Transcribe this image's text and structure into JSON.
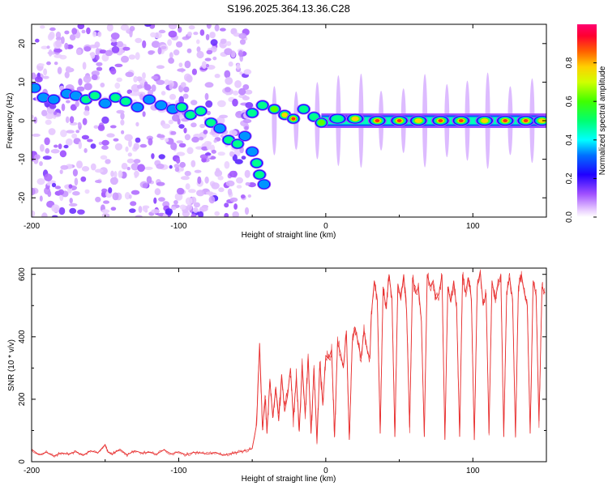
{
  "title": "S196.2025.364.13.36.C28",
  "chart_data": [
    {
      "type": "heatmap",
      "name": "spectrogram",
      "xlabel": "Height of straight line (km)",
      "ylabel": "Frequency (Hz)",
      "xlim": [
        -200,
        150
      ],
      "ylim": [
        -25,
        25
      ],
      "xticks": [
        -200,
        -100,
        0,
        100
      ],
      "yticks": [
        -20,
        -10,
        0,
        10,
        20
      ],
      "colorbar": {
        "label": "Normalized spectral amplitude",
        "range": [
          0,
          1
        ],
        "ticks": [
          0.0,
          0.2,
          0.4,
          0.6,
          0.8
        ]
      },
      "ridge": [
        {
          "x": -198,
          "f": 8.5,
          "a": 0.45
        },
        {
          "x": -192,
          "f": 6.0,
          "a": 0.35
        },
        {
          "x": -185,
          "f": 5.5,
          "a": 0.4
        },
        {
          "x": -176,
          "f": 7.0,
          "a": 0.35
        },
        {
          "x": -170,
          "f": 6.5,
          "a": 0.45
        },
        {
          "x": -163,
          "f": 5.5,
          "a": 0.55
        },
        {
          "x": -157,
          "f": 6.5,
          "a": 0.6
        },
        {
          "x": -150,
          "f": 4.5,
          "a": 0.4
        },
        {
          "x": -143,
          "f": 6.0,
          "a": 0.55
        },
        {
          "x": -136,
          "f": 5.0,
          "a": 0.5
        },
        {
          "x": -128,
          "f": 3.5,
          "a": 0.4
        },
        {
          "x": -120,
          "f": 5.5,
          "a": 0.35
        },
        {
          "x": -112,
          "f": 4.0,
          "a": 0.45
        },
        {
          "x": -104,
          "f": 3.0,
          "a": 0.4
        },
        {
          "x": -98,
          "f": 3.5,
          "a": 0.5
        },
        {
          "x": -92,
          "f": 1.5,
          "a": 0.5
        },
        {
          "x": -85,
          "f": 2.5,
          "a": 0.55
        },
        {
          "x": -78,
          "f": -0.5,
          "a": 0.5
        },
        {
          "x": -72,
          "f": -2.0,
          "a": 0.45
        },
        {
          "x": -66,
          "f": -5.0,
          "a": 0.6
        },
        {
          "x": -60,
          "f": -6.0,
          "a": 0.5
        },
        {
          "x": -55,
          "f": -4.0,
          "a": 0.4
        },
        {
          "x": -50,
          "f": 2.0,
          "a": 0.5
        },
        {
          "x": -43,
          "f": 4.0,
          "a": 0.55
        },
        {
          "x": -35,
          "f": 3.0,
          "a": 0.65
        },
        {
          "x": -28,
          "f": 1.5,
          "a": 0.8
        },
        {
          "x": -22,
          "f": 0.5,
          "a": 0.9
        },
        {
          "x": -15,
          "f": 3.0,
          "a": 0.6
        },
        {
          "x": -8,
          "f": 1.0,
          "a": 0.5
        },
        {
          "x": -3,
          "f": -0.5,
          "a": 0.7
        },
        {
          "x": 8,
          "f": 0.5,
          "a": 0.55
        },
        {
          "x": 20,
          "f": 0.5,
          "a": 0.8
        },
        {
          "x": 35,
          "f": 0.0,
          "a": 0.9
        },
        {
          "x": 50,
          "f": 0.0,
          "a": 0.95
        },
        {
          "x": 63,
          "f": 0.0,
          "a": 0.85
        },
        {
          "x": 78,
          "f": 0.0,
          "a": 0.95
        },
        {
          "x": 92,
          "f": 0.0,
          "a": 0.95
        },
        {
          "x": 108,
          "f": 0.0,
          "a": 0.85
        },
        {
          "x": 122,
          "f": 0.0,
          "a": 0.95
        },
        {
          "x": 136,
          "f": 0.0,
          "a": 0.9
        },
        {
          "x": 147,
          "f": 0.0,
          "a": 0.85
        }
      ],
      "branch": [
        {
          "x": -50,
          "f": -8.0,
          "a": 0.45
        },
        {
          "x": -47,
          "f": -11.0,
          "a": 0.55
        },
        {
          "x": -45,
          "f": -14.0,
          "a": 0.5
        },
        {
          "x": -42,
          "f": -16.5,
          "a": 0.35
        }
      ]
    },
    {
      "type": "line",
      "name": "snr",
      "xlabel": "Height of straight line (km)",
      "ylabel": "SNR (10 * v/v)",
      "xlim": [
        -200,
        150
      ],
      "ylim": [
        0,
        620
      ],
      "xticks": [
        -200,
        -100,
        0,
        100
      ],
      "yticks": [
        0,
        200,
        400,
        600
      ],
      "color": "#e83232",
      "series": [
        {
          "name": "SNR",
          "x": [
            -200,
            -195,
            -190,
            -185,
            -180,
            -175,
            -170,
            -165,
            -160,
            -155,
            -150,
            -148,
            -145,
            -140,
            -135,
            -130,
            -125,
            -120,
            -115,
            -110,
            -105,
            -100,
            -95,
            -90,
            -85,
            -80,
            -75,
            -70,
            -65,
            -60,
            -55,
            -50,
            -47,
            -45,
            -43,
            -41,
            -40,
            -38,
            -36,
            -34,
            -32,
            -30,
            -28,
            -26,
            -24,
            -22,
            -20,
            -18,
            -16,
            -14,
            -12,
            -10,
            -8,
            -6,
            -4,
            -2,
            0,
            2,
            4,
            6,
            8,
            10,
            12,
            14,
            16,
            18,
            20,
            22,
            24,
            26,
            28,
            30,
            31,
            33,
            35,
            37,
            39,
            41,
            43,
            45,
            47,
            49,
            51,
            53,
            55,
            57,
            59,
            61,
            63,
            65,
            67,
            69,
            71,
            73,
            75,
            77,
            79,
            81,
            83,
            85,
            87,
            89,
            91,
            93,
            95,
            97,
            99,
            101,
            103,
            105,
            107,
            109,
            111,
            113,
            115,
            117,
            119,
            121,
            123,
            125,
            127,
            129,
            131,
            133,
            135,
            137,
            139,
            141,
            143,
            145,
            147,
            149
          ],
          "y": [
            40,
            22,
            30,
            18,
            28,
            25,
            32,
            20,
            35,
            28,
            55,
            30,
            25,
            40,
            22,
            35,
            28,
            30,
            24,
            38,
            25,
            32,
            22,
            30,
            28,
            24,
            30,
            20,
            26,
            30,
            35,
            42,
            120,
            380,
            110,
            200,
            90,
            260,
            140,
            240,
            130,
            280,
            160,
            210,
            300,
            140,
            270,
            100,
            310,
            150,
            330,
            90,
            300,
            60,
            320,
            180,
            340,
            330,
            360,
            80,
            380,
            350,
            300,
            420,
            70,
            380,
            430,
            380,
            330,
            420,
            360,
            330,
            470,
            580,
            520,
            90,
            560,
            490,
            600,
            520,
            80,
            570,
            520,
            600,
            480,
            110,
            590,
            540,
            560,
            450,
            80,
            600,
            560,
            580,
            520,
            540,
            600,
            70,
            560,
            510,
            580,
            490,
            80,
            600,
            540,
            590,
            520,
            70,
            560,
            610,
            500,
            540,
            90,
            580,
            520,
            560,
            600,
            80,
            540,
            590,
            520,
            80,
            560,
            600,
            540,
            500,
            90,
            580,
            530,
            130,
            560,
            540
          ]
        }
      ]
    }
  ]
}
